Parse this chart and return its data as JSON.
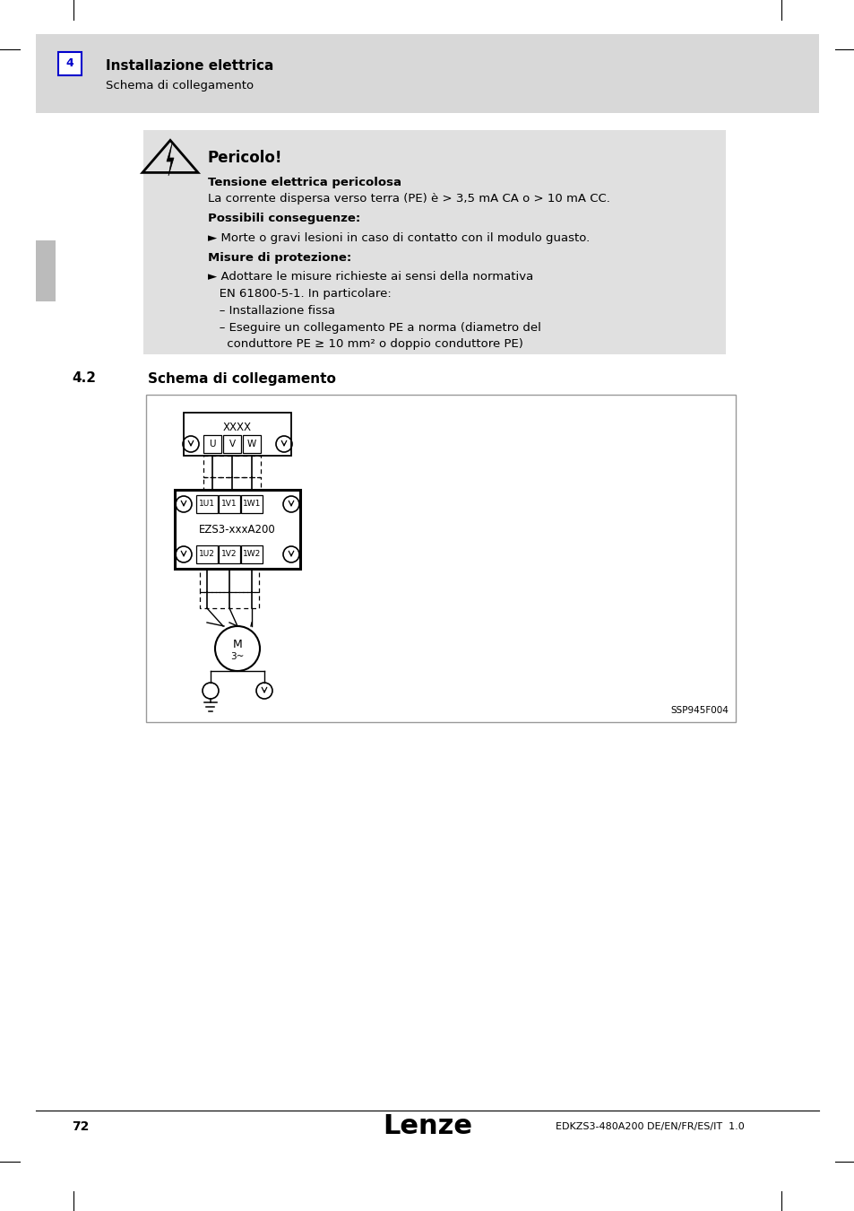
{
  "page_bg": "#ffffff",
  "header_bg": "#d8d8d8",
  "header_number": "4",
  "header_number_color": "#0000cc",
  "header_title": "Installazione elettrica",
  "header_subtitle": "Schema di collegamento",
  "danger_bg": "#e0e0e0",
  "danger_title": "Pericolo!",
  "danger_line1_bold": "Tensione elettrica pericolosa",
  "danger_line2": "La corrente dispersa verso terra (PE) è > 3,5 mA CA o > 10 mA CC.",
  "danger_line3_bold": "Possibili conseguenze:",
  "danger_line4": "► Morte o gravi lesioni in caso di contatto con il modulo guasto.",
  "danger_line5_bold": "Misure di protezione:",
  "danger_line6": "► Adottare le misure richieste ai sensi della normativa",
  "danger_line7": "   EN 61800-5-1. In particolare:",
  "danger_line8": "   – Installazione fissa",
  "danger_line9": "   – Eseguire un collegamento PE a norma (diametro del",
  "danger_line10": "     conduttore PE ≥ 10 mm² o doppio conduttore PE)",
  "section_number": "4.2",
  "section_title": "Schema di collegamento",
  "diagram_bg": "#ffffff",
  "diagram_border": "#aaaaaa",
  "diagram_ref": "SSP945F004",
  "page_number": "72",
  "footer_brand": "Lenze",
  "footer_doc": "EDKZS3-480A200 DE/EN/FR/ES/IT  1.0",
  "left_bar_color": "#bbbbbb"
}
